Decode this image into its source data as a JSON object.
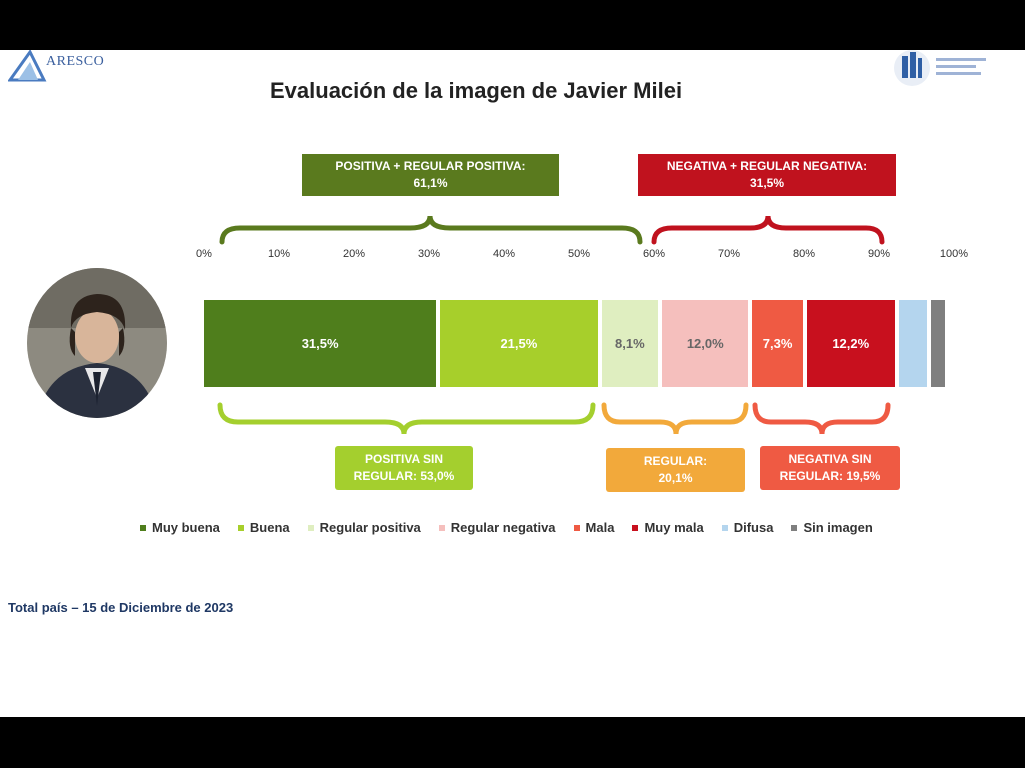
{
  "header": {
    "left_logo_text": "ARESCO",
    "title": "Evaluación de la imagen de Javier Milei"
  },
  "summary_boxes": {
    "positive_total": {
      "line1": "POSITIVA + REGULAR POSITIVA:",
      "line2": "61,1%",
      "color": "#5a7a1e"
    },
    "negative_total": {
      "line1": "NEGATIVA + REGULAR NEGATIVA:",
      "line2": "31,5%",
      "color": "#c0121e"
    },
    "positive_only": {
      "line1": "POSITIVA SIN",
      "line2": "REGULAR: 53,0%",
      "color": "#a4cf2e"
    },
    "regular": {
      "line1": "REGULAR:",
      "line2": "20,1%",
      "color": "#f2a93b"
    },
    "negative_only": {
      "line1": "NEGATIVA SIN",
      "line2": "REGULAR: 19,5%",
      "color": "#ef5a43"
    }
  },
  "chart_data": {
    "type": "bar",
    "orientation": "horizontal-stacked",
    "title": "Evaluación de la imagen de Javier Milei",
    "xlim": [
      0,
      100
    ],
    "x_ticks": [
      "0%",
      "10%",
      "20%",
      "30%",
      "40%",
      "50%",
      "60%",
      "70%",
      "80%",
      "90%",
      "100%"
    ],
    "series": [
      {
        "name": "Muy buena",
        "value": 31.5,
        "label": "31,5%",
        "color": "#4f7e1c"
      },
      {
        "name": "Buena",
        "value": 21.5,
        "label": "21,5%",
        "color": "#a7cf2b"
      },
      {
        "name": "Regular positiva",
        "value": 8.1,
        "label": "8,1%",
        "color": "#dfeec0"
      },
      {
        "name": "Regular negativa",
        "value": 12.0,
        "label": "12,0%",
        "color": "#f5bfbd"
      },
      {
        "name": "Mala",
        "value": 7.3,
        "label": "7,3%",
        "color": "#ef5a43"
      },
      {
        "name": "Muy mala",
        "value": 12.2,
        "label": "12,2%",
        "color": "#c8101e"
      },
      {
        "name": "Difusa",
        "value": 4.3,
        "label": "",
        "color": "#b4d5ee"
      },
      {
        "name": "Sin imagen",
        "value": 2.4,
        "label": "",
        "color": "#7f7f7f"
      }
    ],
    "legend_position": "bottom"
  },
  "legend": [
    {
      "label": "Muy buena",
      "color": "#4f7e1c"
    },
    {
      "label": "Buena",
      "color": "#a7cf2b"
    },
    {
      "label": "Regular positiva",
      "color": "#dfeec0"
    },
    {
      "label": "Regular negativa",
      "color": "#f5bfbd"
    },
    {
      "label": "Mala",
      "color": "#ef5a43"
    },
    {
      "label": "Muy mala",
      "color": "#c8101e"
    },
    {
      "label": "Difusa",
      "color": "#b4d5ee"
    },
    {
      "label": "Sin imagen",
      "color": "#7f7f7f"
    }
  ],
  "footer": {
    "text": "Total país – 15 de Diciembre de 2023"
  }
}
